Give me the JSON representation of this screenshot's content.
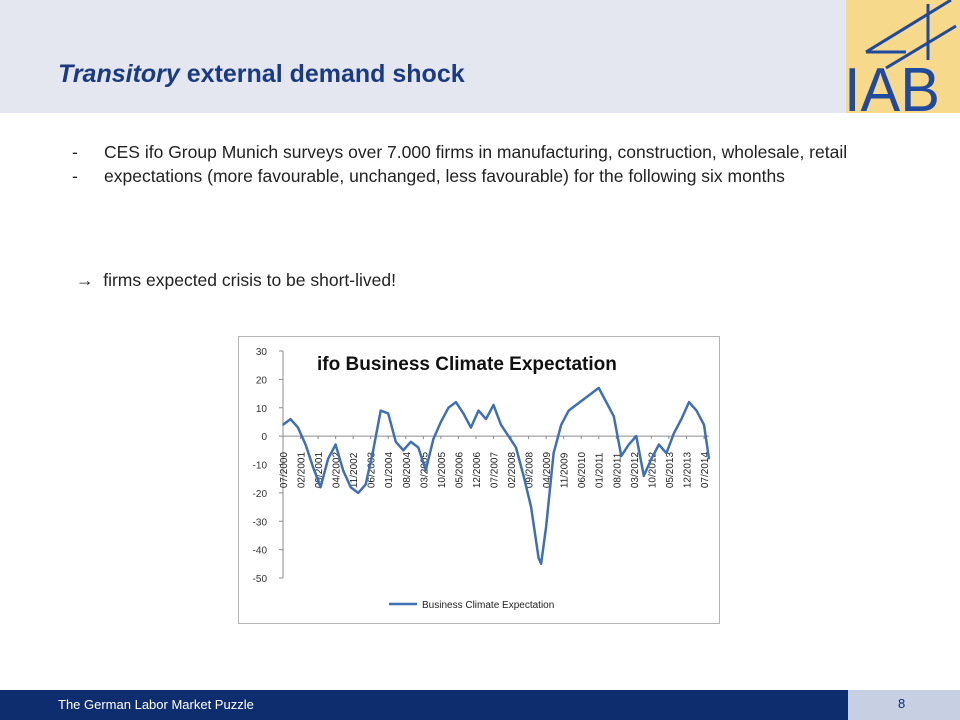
{
  "header": {
    "title_italic": "Transitory",
    "title_rest": " external demand shock",
    "logo_text": "IAB"
  },
  "bullets": [
    "CES ifo Group Munich surveys over 7.000 firms in manufacturing, construction, wholesale, retail",
    "expectations (more favourable, unchanged, less favourable) for the following six months"
  ],
  "bullet_marker": "-",
  "conclusion": {
    "arrow": "→",
    "text": "firms expected crisis to be short-lived!"
  },
  "footer": {
    "text": "The German Labor Market Puzzle",
    "page": "8"
  },
  "colors": {
    "title": "#1a3a82",
    "footer_band": "#0e2d6e",
    "header_band": "#e4e7f0",
    "logo_bg": "#f7d98c",
    "logo_ink": "#1f4a9e",
    "series": "#3f6fb5"
  },
  "chart_data": {
    "type": "line",
    "title": "ifo Business Climate Expectation",
    "ylim": [
      -50,
      30
    ],
    "yticks": [
      30,
      20,
      10,
      0,
      -10,
      -20,
      -30,
      -40,
      -50
    ],
    "xtick_labels": [
      "07/2000",
      "02/2001",
      "09/2001",
      "04/2002",
      "11/2002",
      "06/2003",
      "01/2004",
      "08/2004",
      "03/2005",
      "10/2005",
      "05/2006",
      "12/2006",
      "07/2007",
      "02/2008",
      "09/2008",
      "04/2009",
      "11/2009",
      "06/2010",
      "01/2011",
      "08/2011",
      "03/2012",
      "10/2012",
      "05/2013",
      "12/2013",
      "07/2014"
    ],
    "x_range": [
      "07/2000",
      "09/2014"
    ],
    "grid": false,
    "legend": "bottom",
    "series": [
      {
        "name": "Business Climate Expectation",
        "x": [
          "07/2000",
          "10/2000",
          "01/2001",
          "04/2001",
          "07/2001",
          "10/2001",
          "01/2002",
          "04/2002",
          "07/2002",
          "10/2002",
          "01/2003",
          "04/2003",
          "07/2003",
          "10/2003",
          "01/2004",
          "04/2004",
          "07/2004",
          "10/2004",
          "01/2005",
          "04/2005",
          "07/2005",
          "10/2005",
          "01/2006",
          "04/2006",
          "07/2006",
          "10/2006",
          "01/2007",
          "04/2007",
          "07/2007",
          "10/2007",
          "01/2008",
          "04/2008",
          "07/2008",
          "10/2008",
          "01/2009",
          "02/2009",
          "04/2009",
          "07/2009",
          "10/2009",
          "01/2010",
          "04/2010",
          "07/2010",
          "10/2010",
          "01/2011",
          "04/2011",
          "07/2011",
          "10/2011",
          "01/2012",
          "04/2012",
          "07/2012",
          "10/2012",
          "01/2013",
          "04/2013",
          "07/2013",
          "10/2013",
          "01/2014",
          "04/2014",
          "07/2014",
          "09/2014"
        ],
        "values": [
          4,
          6,
          3,
          -3,
          -11,
          -18,
          -8,
          -3,
          -12,
          -18,
          -20,
          -17,
          -5,
          9,
          8,
          -2,
          -5,
          -2,
          -4,
          -12,
          -1,
          5,
          10,
          12,
          8,
          3,
          9,
          6,
          11,
          4,
          0,
          -4,
          -14,
          -25,
          -43,
          -45,
          -32,
          -6,
          4,
          9,
          11,
          13,
          15,
          17,
          12,
          7,
          -7,
          -3,
          0,
          -14,
          -8,
          -3,
          -6,
          1,
          6,
          12,
          9,
          4,
          -8
        ]
      }
    ]
  }
}
